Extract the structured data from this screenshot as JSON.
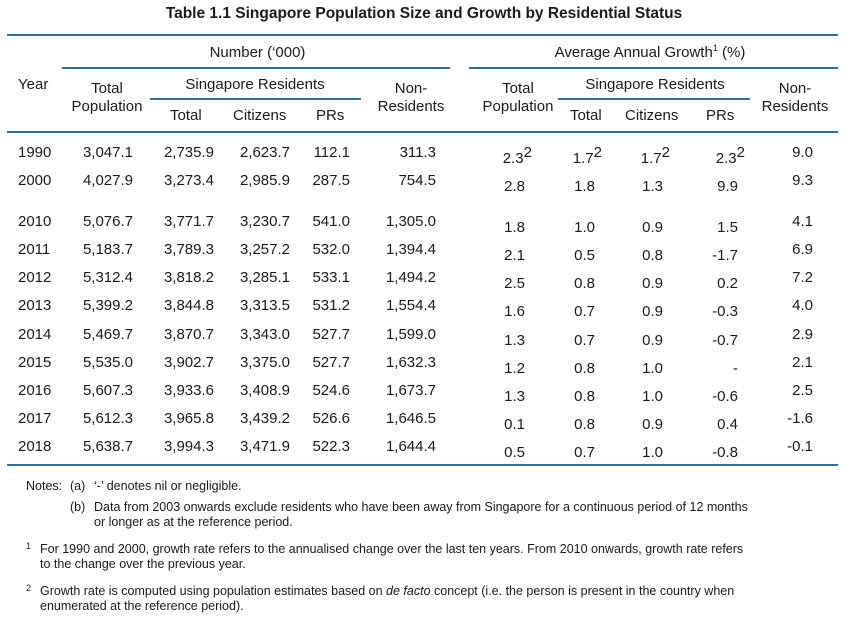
{
  "title": "Table 1.1  Singapore Population Size and Growth by Residential Status",
  "headers": {
    "number_group": "Number (‘000)",
    "growth_group": "Average Annual Growth",
    "growth_group_sup": "1",
    "growth_group_unit": "(%)",
    "year": "Year",
    "total_population": [
      "Total",
      "Population"
    ],
    "singapore_residents": "Singapore Residents",
    "non_residents": [
      "Non-",
      "Residents"
    ],
    "total": "Total",
    "citizens": "Citizens",
    "prs": "PRs"
  },
  "rows": [
    {
      "year": "1990",
      "tp": "3,047.1",
      "sr_total": "2,735.9",
      "cit": "2,623.7",
      "prs": "112.1",
      "nr": "311.3",
      "g_tp": "2.3",
      "g_tp_sup": "2",
      "g_total": "1.7",
      "g_total_sup": "2",
      "g_cit": "1.7",
      "g_cit_sup": "2",
      "g_prs": "2.3",
      "g_prs_sup": "2",
      "g_nr": "9.0"
    },
    {
      "year": "2000",
      "tp": "4,027.9",
      "sr_total": "3,273.4",
      "cit": "2,985.9",
      "prs": "287.5",
      "nr": "754.5",
      "g_tp": "2.8",
      "g_tp_sup": "",
      "g_total": "1.8",
      "g_total_sup": "",
      "g_cit": "1.3",
      "g_cit_sup": "",
      "g_prs": "9.9",
      "g_prs_sup": "",
      "g_nr": "9.3"
    },
    {
      "year": "2010",
      "tp": "5,076.7",
      "sr_total": "3,771.7",
      "cit": "3,230.7",
      "prs": "541.0",
      "nr": "1,305.0",
      "g_tp": "1.8",
      "g_tp_sup": "",
      "g_total": "1.0",
      "g_total_sup": "",
      "g_cit": "0.9",
      "g_cit_sup": "",
      "g_prs": "1.5",
      "g_prs_sup": "",
      "g_nr": "4.1"
    },
    {
      "year": "2011",
      "tp": "5,183.7",
      "sr_total": "3,789.3",
      "cit": "3,257.2",
      "prs": "532.0",
      "nr": "1,394.4",
      "g_tp": "2.1",
      "g_tp_sup": "",
      "g_total": "0.5",
      "g_total_sup": "",
      "g_cit": "0.8",
      "g_cit_sup": "",
      "g_prs": "-1.7",
      "g_prs_sup": "",
      "g_nr": "6.9"
    },
    {
      "year": "2012",
      "tp": "5,312.4",
      "sr_total": "3,818.2",
      "cit": "3,285.1",
      "prs": "533.1",
      "nr": "1,494.2",
      "g_tp": "2.5",
      "g_tp_sup": "",
      "g_total": "0.8",
      "g_total_sup": "",
      "g_cit": "0.9",
      "g_cit_sup": "",
      "g_prs": "0.2",
      "g_prs_sup": "",
      "g_nr": "7.2"
    },
    {
      "year": "2013",
      "tp": "5,399.2",
      "sr_total": "3,844.8",
      "cit": "3,313.5",
      "prs": "531.2",
      "nr": "1,554.4",
      "g_tp": "1.6",
      "g_tp_sup": "",
      "g_total": "0.7",
      "g_total_sup": "",
      "g_cit": "0.9",
      "g_cit_sup": "",
      "g_prs": "-0.3",
      "g_prs_sup": "",
      "g_nr": "4.0"
    },
    {
      "year": "2014",
      "tp": "5,469.7",
      "sr_total": "3,870.7",
      "cit": "3,343.0",
      "prs": "527.7",
      "nr": "1,599.0",
      "g_tp": "1.3",
      "g_tp_sup": "",
      "g_total": "0.7",
      "g_total_sup": "",
      "g_cit": "0.9",
      "g_cit_sup": "",
      "g_prs": "-0.7",
      "g_prs_sup": "",
      "g_nr": "2.9"
    },
    {
      "year": "2015",
      "tp": "5,535.0",
      "sr_total": "3,902.7",
      "cit": "3,375.0",
      "prs": "527.7",
      "nr": "1,632.3",
      "g_tp": "1.2",
      "g_tp_sup": "",
      "g_total": "0.8",
      "g_total_sup": "",
      "g_cit": "1.0",
      "g_cit_sup": "",
      "g_prs": "-",
      "g_prs_sup": "",
      "g_nr": "2.1"
    },
    {
      "year": "2016",
      "tp": "5,607.3",
      "sr_total": "3,933.6",
      "cit": "3,408.9",
      "prs": "524.6",
      "nr": "1,673.7",
      "g_tp": "1.3",
      "g_tp_sup": "",
      "g_total": "0.8",
      "g_total_sup": "",
      "g_cit": "1.0",
      "g_cit_sup": "",
      "g_prs": "-0.6",
      "g_prs_sup": "",
      "g_nr": "2.5"
    },
    {
      "year": "2017",
      "tp": "5,612.3",
      "sr_total": "3,965.8",
      "cit": "3,439.2",
      "prs": "526.6",
      "nr": "1,646.5",
      "g_tp": "0.1",
      "g_tp_sup": "",
      "g_total": "0.8",
      "g_total_sup": "",
      "g_cit": "0.9",
      "g_cit_sup": "",
      "g_prs": "0.4",
      "g_prs_sup": "",
      "g_nr": "-1.6"
    },
    {
      "year": "2018",
      "tp": "5,638.7",
      "sr_total": "3,994.3",
      "cit": "3,471.9",
      "prs": "522.3",
      "nr": "1,644.4",
      "g_tp": "0.5",
      "g_tp_sup": "",
      "g_total": "0.7",
      "g_total_sup": "",
      "g_cit": "1.0",
      "g_cit_sup": "",
      "g_prs": "-0.8",
      "g_prs_sup": "",
      "g_nr": "-0.1"
    }
  ],
  "notes": {
    "label": "Notes:",
    "a_marker": "(a)",
    "a_text": "‘-’ denotes nil or negligible.",
    "b_marker": "(b)",
    "b_text_1": "Data from 2003 onwards exclude residents who have been away from Singapore for a continuous period of 12 months",
    "b_text_2": "or longer as at the reference period.",
    "fn1_marker": "1",
    "fn1_text_1": "For 1990 and 2000, growth rate refers to the annualised change over the last ten years. From 2010 onwards, growth rate refers",
    "fn1_text_2": "to the change over the previous year.",
    "fn2_marker": "2",
    "fn2_text_1_pre": "Growth rate is computed using population estimates based on ",
    "fn2_text_1_em": "de facto",
    "fn2_text_1_post": " concept (i.e. the person is present in the country when",
    "fn2_text_2": "enumerated at the reference period)."
  },
  "colors": {
    "rule": "#2f6fa5",
    "text": "#1a1a1a"
  }
}
